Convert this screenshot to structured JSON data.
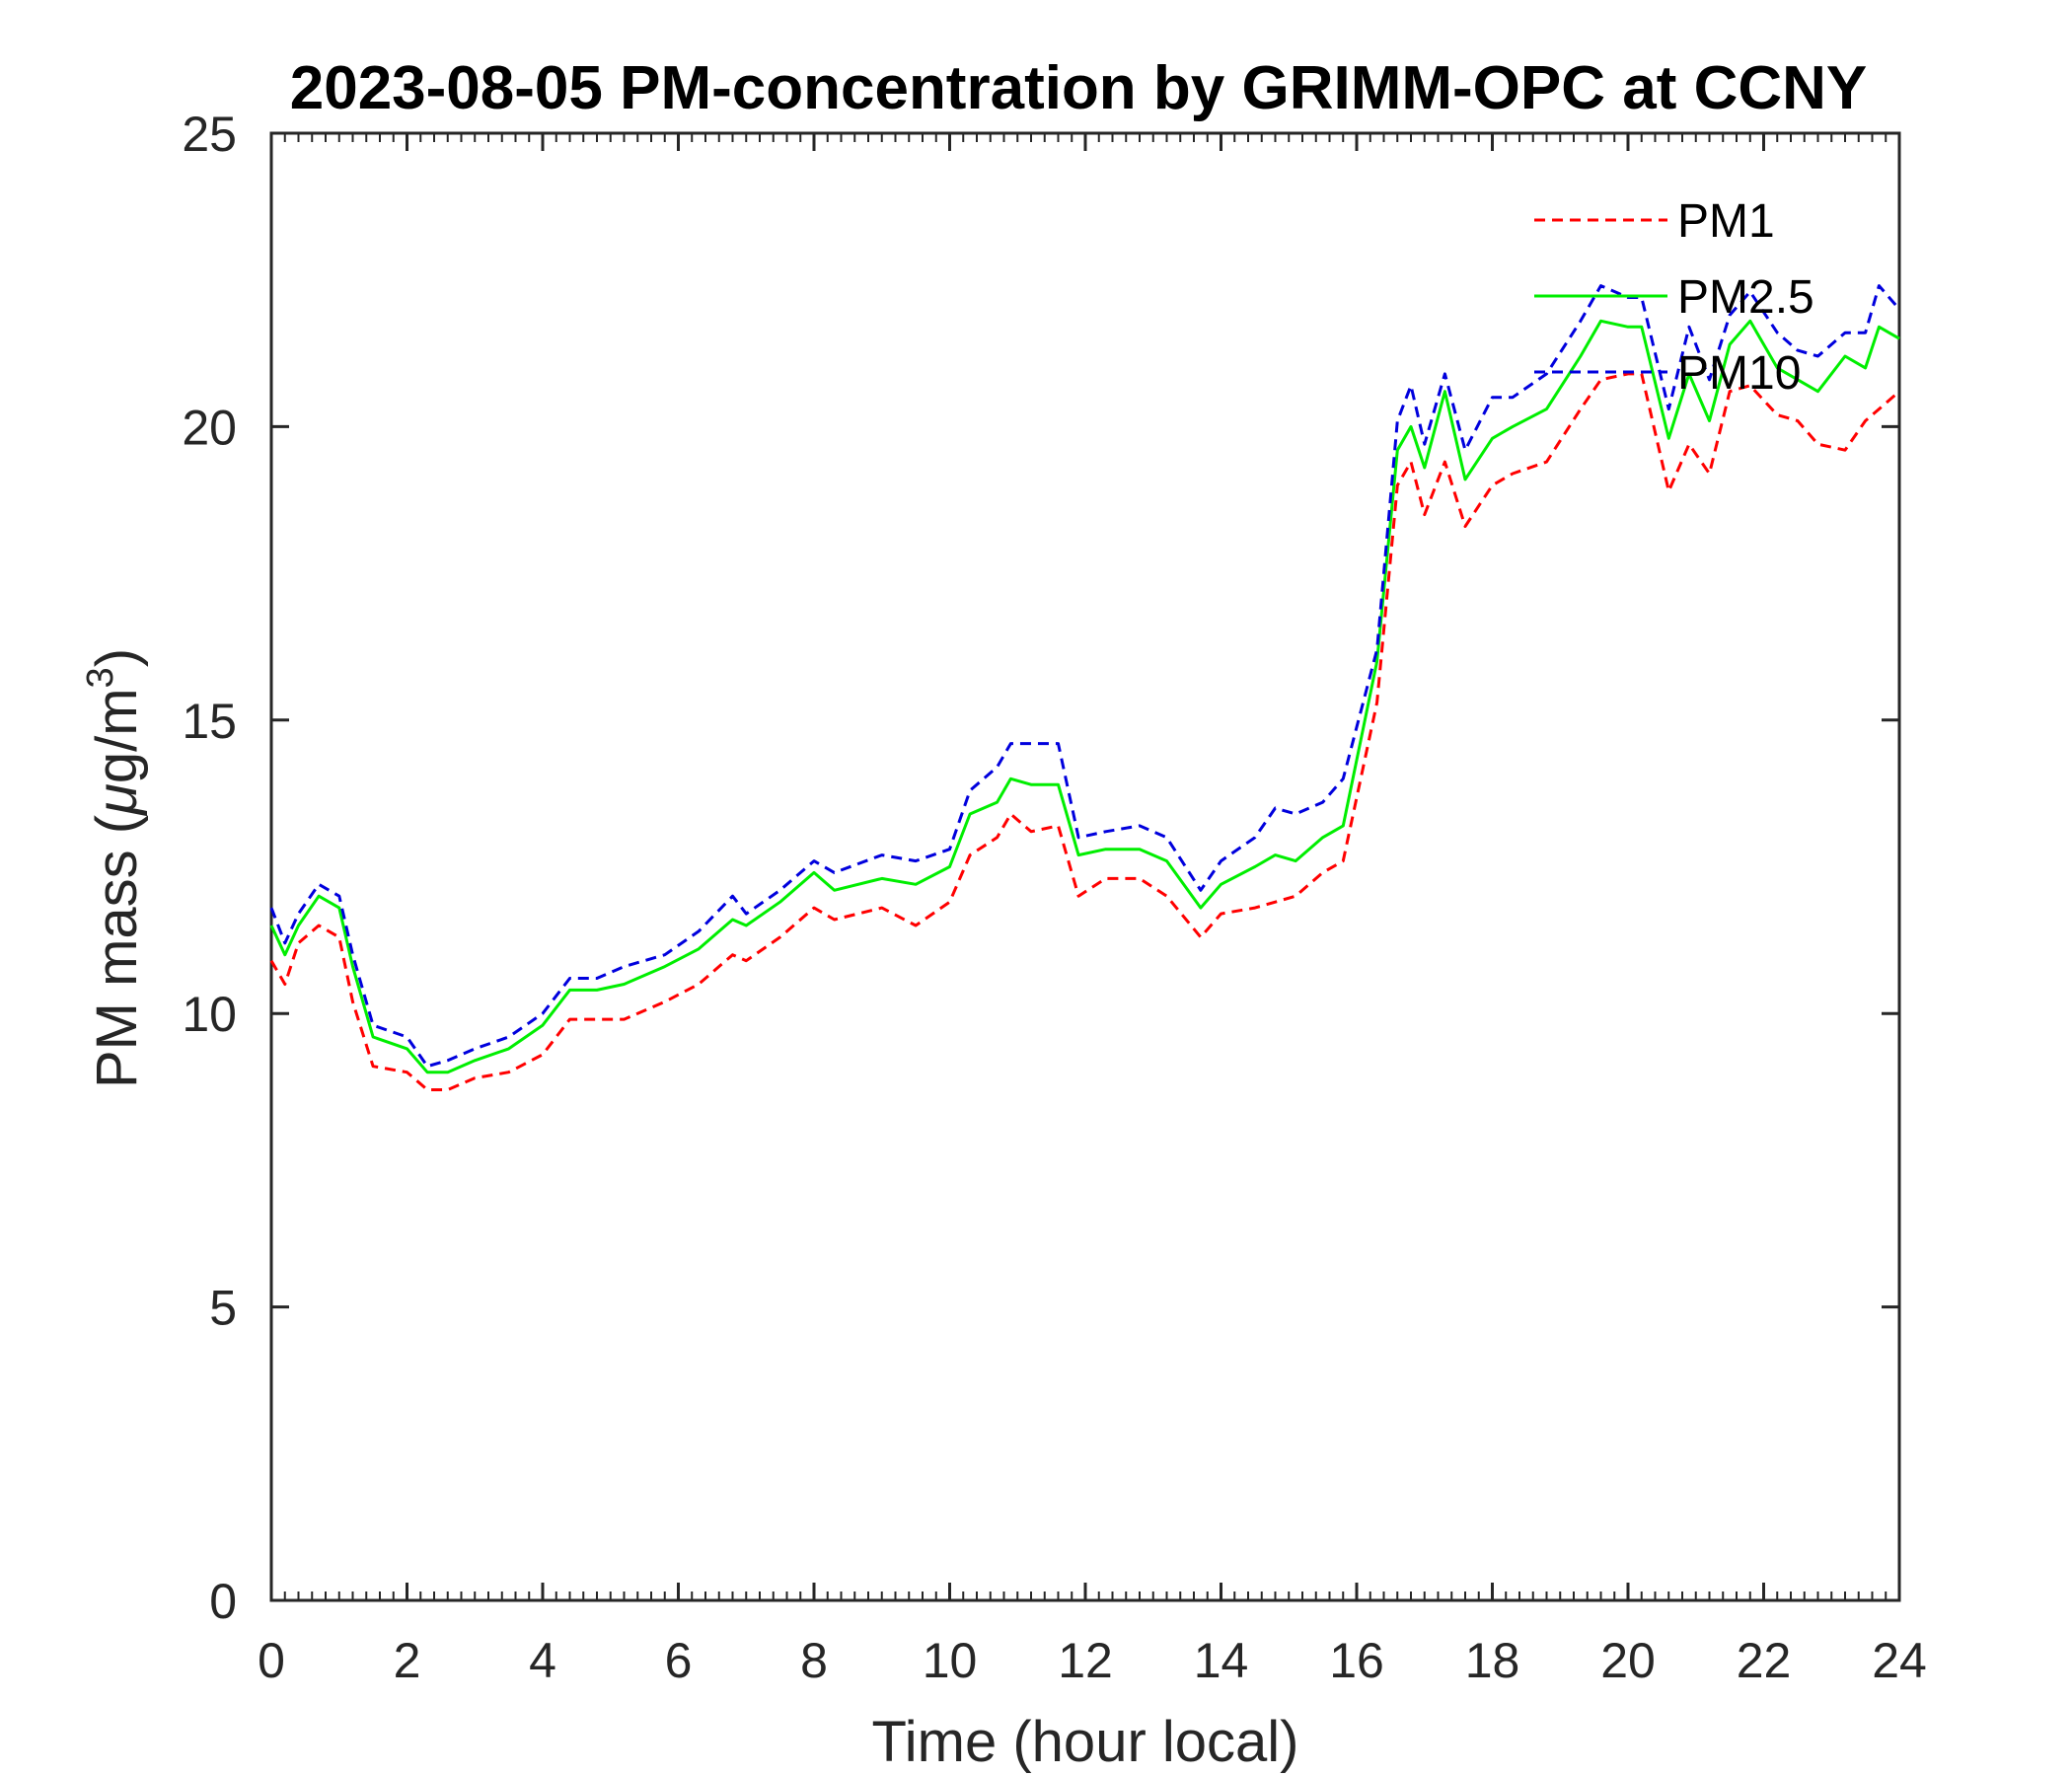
{
  "chart_data": {
    "type": "line",
    "title": "2023-08-05 PM-concentration by GRIMM-OPC at CCNY",
    "xlabel": "Time (hour local)",
    "ylabel_main": "PM mass (",
    "ylabel_mu": "μ",
    "ylabel_unit": "g/m",
    "ylabel_sup": "3",
    "ylabel_close": ")",
    "xlim": [
      0,
      24
    ],
    "ylim": [
      0,
      25
    ],
    "xticks": [
      "0",
      "2",
      "4",
      "6",
      "8",
      "10",
      "12",
      "14",
      "16",
      "18",
      "20",
      "22",
      "24"
    ],
    "yticks": [
      "0",
      "5",
      "10",
      "15",
      "20",
      "25"
    ],
    "legend_position": "top-right",
    "grid": false,
    "x": [
      0.0,
      0.2,
      0.4,
      0.7,
      1.0,
      1.2,
      1.5,
      2.0,
      2.3,
      2.6,
      3.0,
      3.5,
      4.0,
      4.4,
      4.8,
      5.2,
      5.8,
      6.3,
      6.8,
      7.0,
      7.5,
      8.0,
      8.3,
      9.0,
      9.5,
      10.0,
      10.3,
      10.7,
      10.9,
      11.2,
      11.6,
      11.9,
      12.3,
      12.8,
      13.2,
      13.7,
      14.0,
      14.5,
      14.8,
      15.1,
      15.5,
      15.8,
      16.3,
      16.6,
      16.8,
      17.0,
      17.3,
      17.6,
      18.0,
      18.3,
      18.8,
      19.3,
      19.6,
      20.0,
      20.2,
      20.6,
      20.9,
      21.2,
      21.5,
      21.8,
      22.2,
      22.5,
      22.8,
      23.2,
      23.5,
      23.7,
      24.0
    ],
    "series": [
      {
        "name": "PM1",
        "color": "#ff0000",
        "dash": "dashed",
        "values": [
          10.9,
          10.5,
          11.2,
          11.5,
          11.3,
          10.2,
          9.1,
          9.0,
          8.7,
          8.7,
          8.9,
          9.0,
          9.3,
          9.9,
          9.9,
          9.9,
          10.2,
          10.5,
          11.0,
          10.9,
          11.3,
          11.8,
          11.6,
          11.8,
          11.5,
          11.9,
          12.7,
          13.0,
          13.4,
          13.1,
          13.2,
          12.0,
          12.3,
          12.3,
          12.0,
          11.3,
          11.7,
          11.8,
          11.9,
          12.0,
          12.4,
          12.6,
          15.3,
          19.0,
          19.4,
          18.5,
          19.4,
          18.3,
          19.0,
          19.2,
          19.4,
          20.3,
          20.8,
          20.9,
          20.9,
          18.9,
          19.7,
          19.2,
          20.6,
          20.7,
          20.2,
          20.1,
          19.7,
          19.6,
          20.1,
          20.3,
          20.6
        ]
      },
      {
        "name": "PM2.5",
        "color": "#00ee00",
        "dash": "solid",
        "values": [
          11.5,
          11.0,
          11.5,
          12.0,
          11.8,
          10.8,
          9.6,
          9.4,
          9.0,
          9.0,
          9.2,
          9.4,
          9.8,
          10.4,
          10.4,
          10.5,
          10.8,
          11.1,
          11.6,
          11.5,
          11.9,
          12.4,
          12.1,
          12.3,
          12.2,
          12.5,
          13.4,
          13.6,
          14.0,
          13.9,
          13.9,
          12.7,
          12.8,
          12.8,
          12.6,
          11.8,
          12.2,
          12.5,
          12.7,
          12.6,
          13.0,
          13.2,
          16.0,
          19.6,
          20.0,
          19.3,
          20.6,
          19.1,
          19.8,
          20.0,
          20.3,
          21.2,
          21.8,
          21.7,
          21.7,
          19.8,
          20.9,
          20.1,
          21.4,
          21.8,
          21.0,
          20.8,
          20.6,
          21.2,
          21.0,
          21.7,
          21.5
        ]
      },
      {
        "name": "PM10",
        "color": "#0000dd",
        "dash": "dashed",
        "values": [
          11.8,
          11.2,
          11.7,
          12.2,
          12.0,
          11.0,
          9.8,
          9.6,
          9.1,
          9.2,
          9.4,
          9.6,
          10.0,
          10.6,
          10.6,
          10.8,
          11.0,
          11.4,
          12.0,
          11.7,
          12.1,
          12.6,
          12.4,
          12.7,
          12.6,
          12.8,
          13.8,
          14.2,
          14.6,
          14.6,
          14.6,
          13.0,
          13.1,
          13.2,
          13.0,
          12.1,
          12.6,
          13.0,
          13.5,
          13.4,
          13.6,
          14.0,
          16.2,
          20.1,
          20.7,
          19.7,
          20.9,
          19.6,
          20.5,
          20.5,
          20.9,
          21.8,
          22.4,
          22.2,
          22.2,
          20.3,
          21.7,
          20.8,
          21.9,
          22.3,
          21.6,
          21.3,
          21.2,
          21.6,
          21.6,
          22.4,
          22.0
        ]
      }
    ]
  }
}
